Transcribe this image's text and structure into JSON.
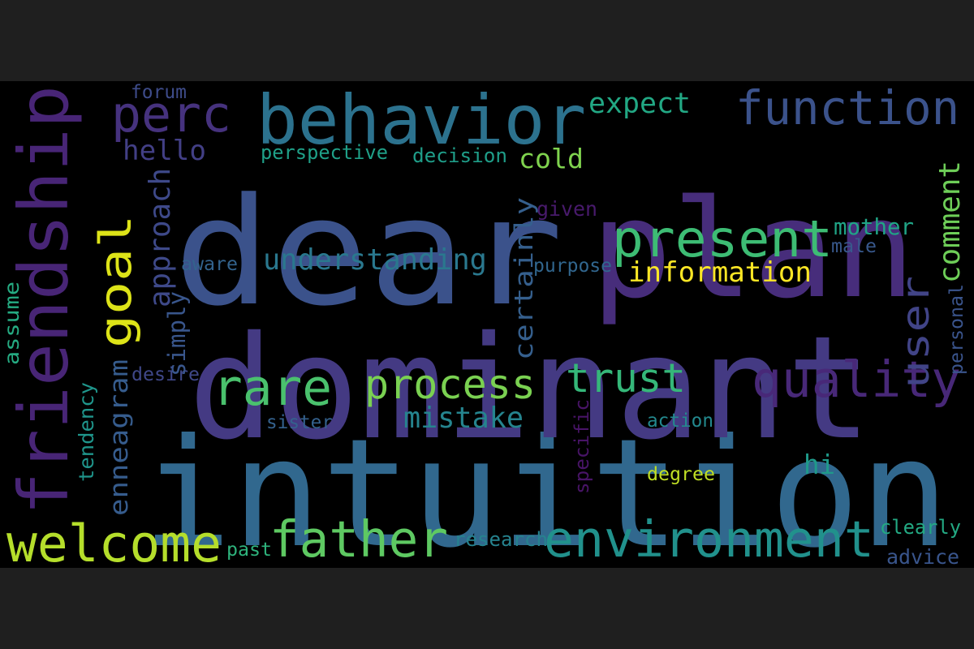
{
  "background": {
    "page": "#1f1f1f",
    "cloud": "#000000"
  },
  "words": [
    {
      "text": "intuition",
      "color": "#31688e"
    },
    {
      "text": "dominant",
      "color": "#443a83"
    },
    {
      "text": "plan",
      "color": "#472d7b"
    },
    {
      "text": "dear",
      "color": "#3b528b"
    },
    {
      "text": "behavior",
      "color": "#2c728e"
    },
    {
      "text": "friendship",
      "color": "#482576"
    },
    {
      "text": "function",
      "color": "#3b528b"
    },
    {
      "text": "environment",
      "color": "#21918c"
    },
    {
      "text": "father",
      "color": "#5ec962"
    },
    {
      "text": "welcome",
      "color": "#b5de2b"
    },
    {
      "text": "quality",
      "color": "#482878"
    },
    {
      "text": "present",
      "color": "#3dbc74"
    },
    {
      "text": "goal",
      "color": "#dde318"
    },
    {
      "text": "process",
      "color": "#7ad151"
    },
    {
      "text": "trust",
      "color": "#35b779"
    },
    {
      "text": "rare",
      "color": "#4ac16d"
    },
    {
      "text": "perc",
      "color": "#46327e"
    },
    {
      "text": "user",
      "color": "#414487"
    },
    {
      "text": "understanding",
      "color": "#2a788e"
    },
    {
      "text": "information",
      "color": "#fde725"
    },
    {
      "text": "mother",
      "color": "#20a486"
    },
    {
      "text": "mistake",
      "color": "#25848e"
    },
    {
      "text": "expect",
      "color": "#22a884"
    },
    {
      "text": "cold",
      "color": "#7fd34e"
    },
    {
      "text": "comment",
      "color": "#6ece58"
    },
    {
      "text": "approach",
      "color": "#3e4989"
    },
    {
      "text": "certainly",
      "color": "#355f8d"
    },
    {
      "text": "enneagram",
      "color": "#365c8d"
    },
    {
      "text": "hello",
      "color": "#423f85"
    },
    {
      "text": "hi",
      "color": "#1f9a8a"
    },
    {
      "text": "perspective",
      "color": "#1fa088"
    },
    {
      "text": "decision",
      "color": "#1f9e89"
    },
    {
      "text": "degree",
      "color": "#c0df25"
    },
    {
      "text": "action",
      "color": "#23898e"
    },
    {
      "text": "sister",
      "color": "#34618d"
    },
    {
      "text": "desire",
      "color": "#3f4788"
    },
    {
      "text": "aware",
      "color": "#33638d"
    },
    {
      "text": "purpose",
      "color": "#31668e"
    },
    {
      "text": "research",
      "color": "#26828e"
    },
    {
      "text": "clearly",
      "color": "#23a983"
    },
    {
      "text": "advice",
      "color": "#39558c"
    },
    {
      "text": "past",
      "color": "#2eb37c"
    },
    {
      "text": "forum",
      "color": "#3e4c8a"
    },
    {
      "text": "given",
      "color": "#481a6c"
    },
    {
      "text": "male",
      "color": "#38588c"
    },
    {
      "text": "simply",
      "color": "#39568c"
    },
    {
      "text": "personal",
      "color": "#3a548c"
    },
    {
      "text": "specific",
      "color": "#481467"
    },
    {
      "text": "tendency",
      "color": "#1f958b"
    },
    {
      "text": "assume",
      "color": "#25ab82"
    }
  ]
}
